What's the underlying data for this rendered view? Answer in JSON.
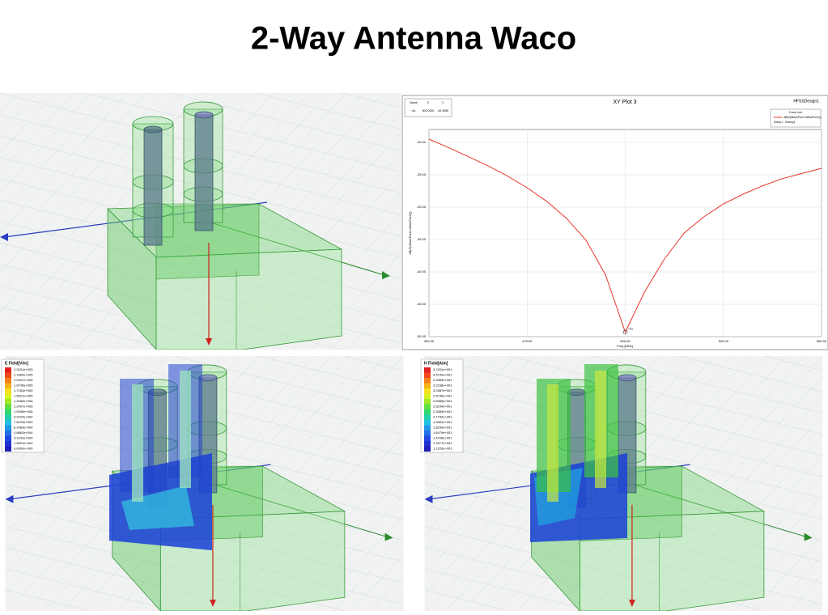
{
  "title": "2-Way Antenna Waco",
  "plot": {
    "type": "line",
    "title": "XY Plot 3",
    "subtitle": "HFSSDesign1",
    "xlabel": "Freq [MHz]",
    "ylabel": "dB(S(WavePort1,WavePort1))",
    "legend_title": "Curve Info",
    "legend_setup": "Setup1 : Sweep1",
    "marker_table": {
      "header": [
        "Name",
        "X",
        "Y"
      ],
      "row": [
        "m1",
        "500.0000",
        "-49.3398"
      ]
    },
    "marker_name": "m1",
    "series": [
      {
        "name": "dB(S(WavePort1,WavePort1))",
        "color": "#e8352b",
        "x": [
          450,
          455,
          460,
          465,
          470,
          475,
          480,
          485,
          490,
          495,
          500,
          505,
          510,
          515,
          520,
          525,
          530,
          535,
          540,
          545,
          550
        ],
        "values": [
          -19.5,
          -20.8,
          -22.2,
          -23.6,
          -25.2,
          -27.0,
          -29.1,
          -31.7,
          -35.1,
          -40.5,
          -49.3,
          -43.0,
          -38.0,
          -34.0,
          -31.5,
          -29.5,
          -28.0,
          -26.7,
          -25.6,
          -24.8,
          -24.0
        ]
      }
    ],
    "xlim": [
      450,
      550
    ],
    "ylim": [
      -50,
      -18
    ],
    "xticks": [
      {
        "value": 450,
        "label": "450.00"
      },
      {
        "value": 475,
        "label": "475.00"
      },
      {
        "value": 500,
        "label": "500.00"
      },
      {
        "value": 525,
        "label": "525.00"
      },
      {
        "value": 550,
        "label": "550.00"
      }
    ],
    "yticks": [
      {
        "value": -20,
        "label": "-20.00"
      },
      {
        "value": -25,
        "label": "-25.00"
      },
      {
        "value": -30,
        "label": "-30.00"
      },
      {
        "value": -35,
        "label": "-35.00"
      },
      {
        "value": -40,
        "label": "-40.00"
      },
      {
        "value": -45,
        "label": "-45.00"
      },
      {
        "value": -50,
        "label": "-50.00"
      }
    ],
    "grid": true
  },
  "e_field": {
    "title": "E Field[V/m]",
    "scale": [
      "2.3431e+005",
      "2.1869e+005",
      "2.0307e+005",
      "1.8745e+005",
      "1.7183e+005",
      "1.5621e+005",
      "1.4059e+005",
      "1.2497e+005",
      "1.0935e+005",
      "9.3724e+004",
      "7.8103e+004",
      "6.2483e+004",
      "4.6862e+004",
      "3.1241e+004",
      "1.5621e+004",
      "0.0000e+000"
    ]
  },
  "h_field": {
    "title": "H Field[A/m]",
    "scale": [
      "3.7491e+001",
      "3.5740e+001",
      "3.3989e+001",
      "3.2238e+001",
      "3.0487e+001",
      "2.8736e+001",
      "2.6985e+001",
      "2.5234e+001",
      "2.3483e+001",
      "2.1732e+001",
      "1.9981e+001",
      "1.8230e+001",
      "1.6479e+001",
      "1.4728e+001",
      "1.2977e+001",
      "1.1226e+001"
    ]
  }
}
